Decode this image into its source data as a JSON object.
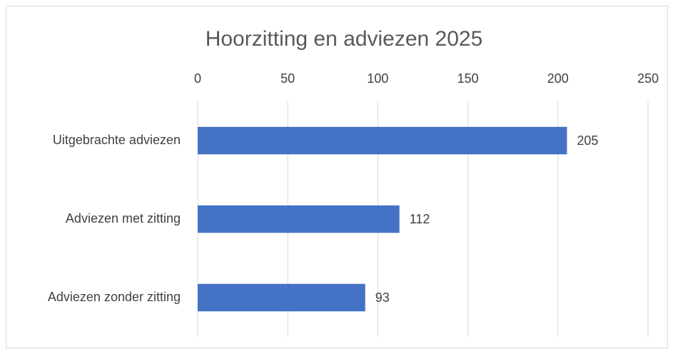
{
  "chart_data": {
    "type": "bar",
    "orientation": "horizontal",
    "title": "Hoorzitting en adviezen 2025",
    "categories": [
      "Uitgebrachte adviezen",
      "Adviezen met zitting",
      "Adviezen zonder zitting"
    ],
    "values": [
      205,
      112,
      93
    ],
    "color": "#4472c4",
    "xlim": [
      0,
      250
    ],
    "xticks": [
      0,
      50,
      100,
      150,
      200,
      250
    ],
    "grid": true,
    "data_labels": true
  }
}
